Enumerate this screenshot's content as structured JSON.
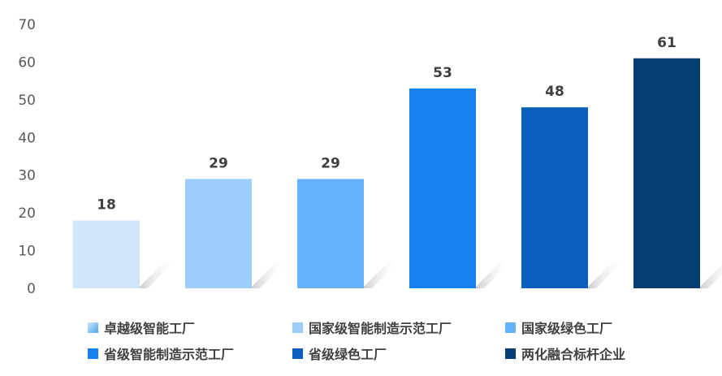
{
  "chart_data": {
    "type": "bar",
    "categories": [
      "卓越级智能工厂",
      "国家级智能制造示范工厂",
      "国家级绿色工厂",
      "省级智能制造示范工厂",
      "省级绿色工厂",
      "两化融合标杆企业"
    ],
    "values": [
      18,
      29,
      29,
      53,
      48,
      61
    ],
    "colors": [
      "#cfe5fb",
      "#9dcdfa",
      "#66b3fb",
      "#1580ee",
      "#0a5fbc",
      "#063d73"
    ],
    "ylim": [
      0,
      70
    ],
    "yticks": [
      "0",
      "10",
      "20",
      "30",
      "40",
      "50",
      "60",
      "70"
    ],
    "legend_position": "bottom",
    "grid": false
  }
}
